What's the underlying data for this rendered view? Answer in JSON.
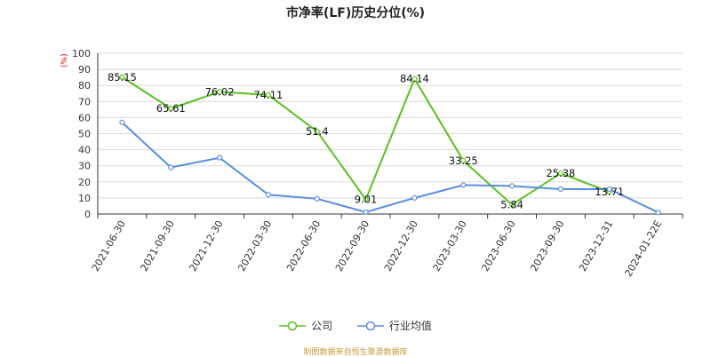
{
  "chart_data": {
    "type": "line",
    "title": "市净率(LF)历史分位(%)",
    "ylabel": "(%)",
    "ylim": [
      0,
      100
    ],
    "yticks": [
      0,
      10,
      20,
      30,
      40,
      50,
      60,
      70,
      80,
      90,
      100
    ],
    "grid": true,
    "legend_position": "bottom",
    "categories": [
      "2021-06-30",
      "2021-09-30",
      "2021-12-30",
      "2022-03-30",
      "2022-06-30",
      "2022-09-30",
      "2022-12-30",
      "2023-03-30",
      "2023-06-30",
      "2023-09-30",
      "2023-12-31",
      "2024-01-22E"
    ],
    "series": [
      {
        "name": "公司",
        "color": "#5cc021",
        "values": [
          85.15,
          65.61,
          76.02,
          74.11,
          51.4,
          9.01,
          84.14,
          33.25,
          5.84,
          25.38,
          13.71,
          null
        ],
        "labels": [
          "85.15",
          "65.61",
          "76.02",
          "74.11",
          "51.4",
          "9.01",
          "84.14",
          "33.25",
          "5.84",
          "25.38",
          "13.71",
          null
        ]
      },
      {
        "name": "行业均值",
        "color": "#5b8ee0",
        "values": [
          57,
          29,
          35,
          12,
          9.5,
          1.2,
          10,
          18,
          17.5,
          15.5,
          15.5,
          1
        ]
      }
    ]
  },
  "source_text": "制图数据来自恒生聚源数据库"
}
